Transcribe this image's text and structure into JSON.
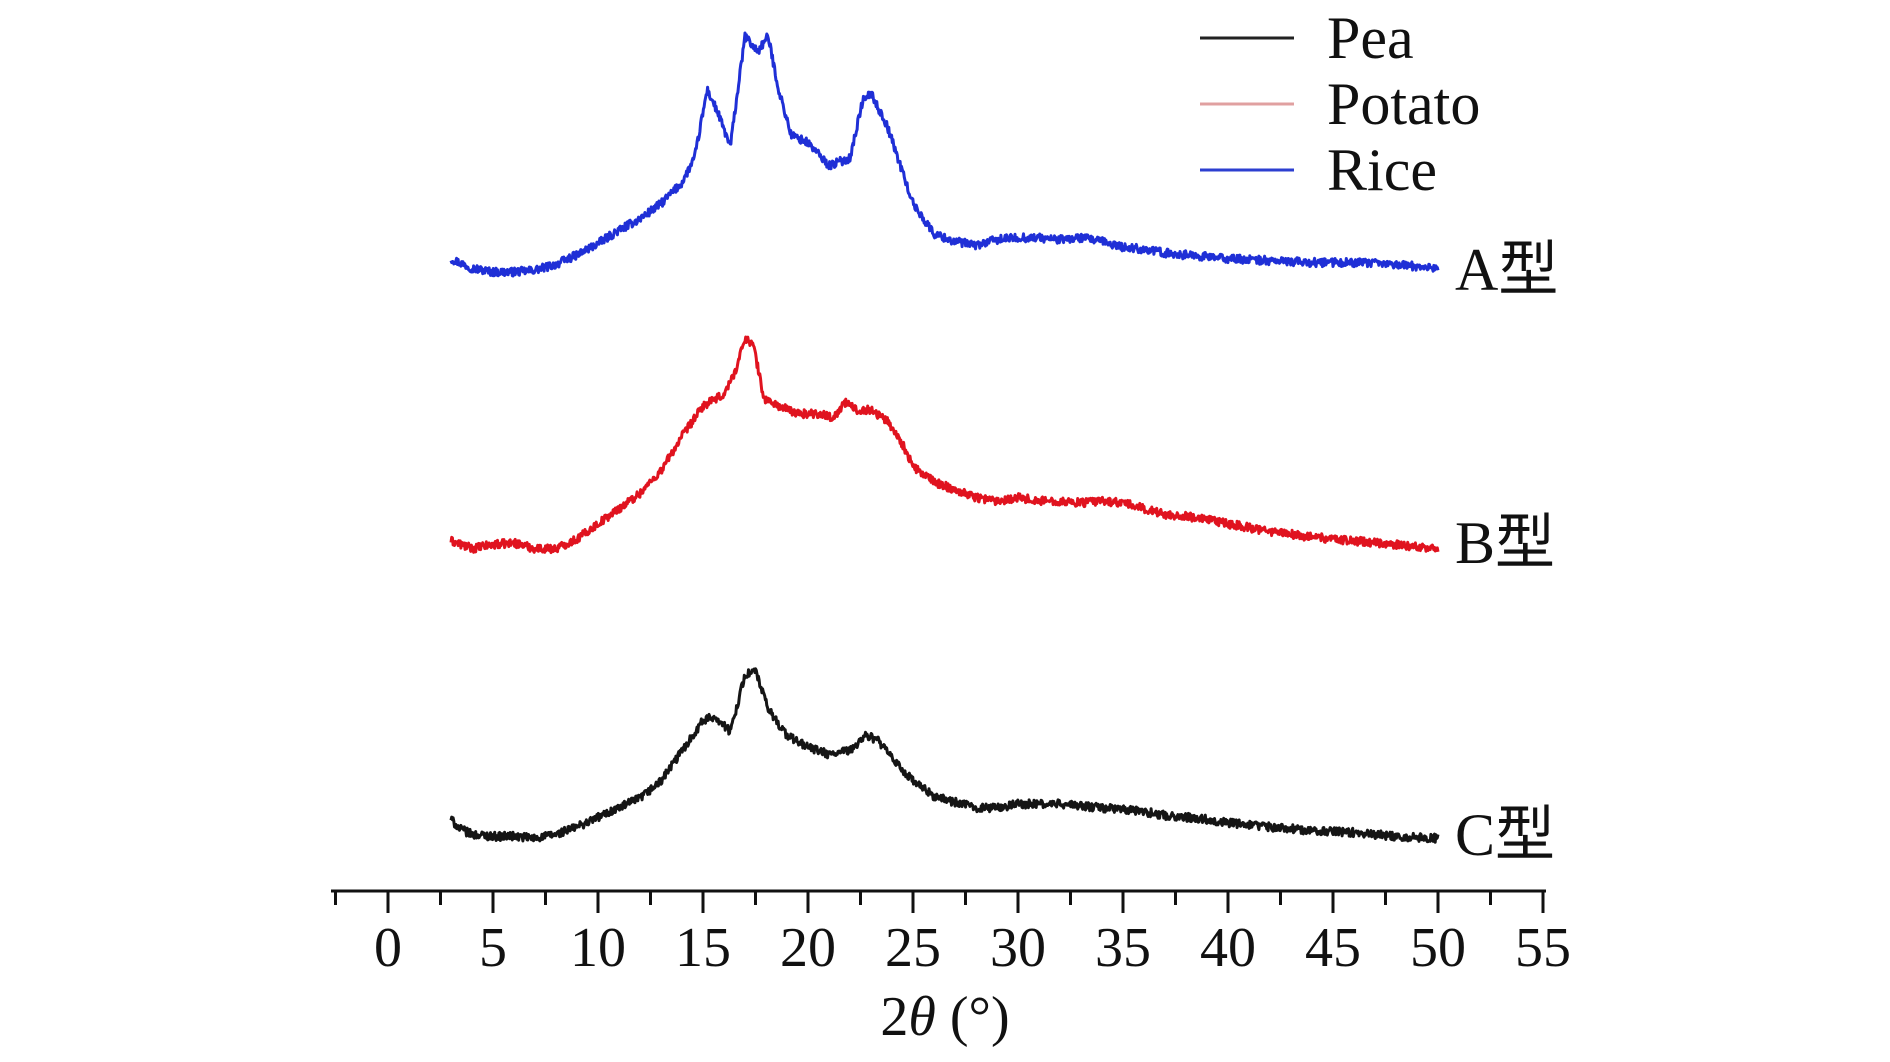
{
  "chart_data": {
    "type": "line",
    "xlabel_prefix": "2",
    "xlabel_symbol": "θ",
    "xlabel_unit": " (°)",
    "xlim": [
      -2.5,
      55
    ],
    "xticks": [
      0,
      5,
      10,
      15,
      20,
      25,
      30,
      35,
      40,
      45,
      50,
      55
    ],
    "legend": {
      "position": "top-right",
      "entries": [
        {
          "name": "Pea",
          "color": "#222222"
        },
        {
          "name": "Potato",
          "color": "#e0a0a0"
        },
        {
          "name": "Rice",
          "color": "#2c3fd0"
        }
      ]
    },
    "series": [
      {
        "name": "Rice",
        "type_label": "A型",
        "color": "#1f2fd6",
        "points": [
          [
            3,
            0.035
          ],
          [
            4,
            0.01
          ],
          [
            5,
            0
          ],
          [
            6,
            0
          ],
          [
            7,
            0.005
          ],
          [
            8,
            0.02
          ],
          [
            9,
            0.045
          ],
          [
            10,
            0.075
          ],
          [
            11,
            0.11
          ],
          [
            12,
            0.14
          ],
          [
            13,
            0.18
          ],
          [
            14,
            0.235
          ],
          [
            14.6,
            0.3
          ],
          [
            15.2,
            0.48
          ],
          [
            15.7,
            0.42
          ],
          [
            16.3,
            0.33
          ],
          [
            17,
            0.62
          ],
          [
            17.6,
            0.58
          ],
          [
            18.1,
            0.62
          ],
          [
            18.6,
            0.48
          ],
          [
            19.2,
            0.36
          ],
          [
            20,
            0.34
          ],
          [
            21,
            0.28
          ],
          [
            22,
            0.3
          ],
          [
            22.6,
            0.45
          ],
          [
            23,
            0.47
          ],
          [
            23.8,
            0.38
          ],
          [
            25,
            0.18
          ],
          [
            26,
            0.1
          ],
          [
            27,
            0.08
          ],
          [
            28,
            0.07
          ],
          [
            29,
            0.085
          ],
          [
            30,
            0.09
          ],
          [
            31,
            0.09
          ],
          [
            32,
            0.085
          ],
          [
            33,
            0.09
          ],
          [
            34,
            0.08
          ],
          [
            35,
            0.065
          ],
          [
            36,
            0.06
          ],
          [
            37,
            0.05
          ],
          [
            38,
            0.045
          ],
          [
            39,
            0.04
          ],
          [
            40,
            0.035
          ],
          [
            42,
            0.03
          ],
          [
            44,
            0.025
          ],
          [
            46,
            0.025
          ],
          [
            48,
            0.02
          ],
          [
            50,
            0.01
          ]
        ]
      },
      {
        "name": "Potato",
        "type_label": "B型",
        "color": "#e0131f",
        "points": [
          [
            3,
            0.045
          ],
          [
            4,
            0.025
          ],
          [
            5,
            0.035
          ],
          [
            6,
            0.04
          ],
          [
            7,
            0.025
          ],
          [
            8,
            0.025
          ],
          [
            9,
            0.05
          ],
          [
            10,
            0.09
          ],
          [
            11,
            0.13
          ],
          [
            12,
            0.17
          ],
          [
            13,
            0.23
          ],
          [
            14,
            0.32
          ],
          [
            15,
            0.4
          ],
          [
            16,
            0.43
          ],
          [
            16.6,
            0.5
          ],
          [
            17,
            0.58
          ],
          [
            17.4,
            0.56
          ],
          [
            17.9,
            0.42
          ],
          [
            18.6,
            0.4
          ],
          [
            19.5,
            0.38
          ],
          [
            20.5,
            0.38
          ],
          [
            21.2,
            0.37
          ],
          [
            21.8,
            0.41
          ],
          [
            22.3,
            0.39
          ],
          [
            23,
            0.39
          ],
          [
            23.8,
            0.36
          ],
          [
            24.5,
            0.3
          ],
          [
            25,
            0.24
          ],
          [
            26,
            0.2
          ],
          [
            27,
            0.18
          ],
          [
            28,
            0.16
          ],
          [
            29,
            0.15
          ],
          [
            30,
            0.16
          ],
          [
            31,
            0.15
          ],
          [
            32,
            0.15
          ],
          [
            33,
            0.145
          ],
          [
            34,
            0.15
          ],
          [
            35,
            0.145
          ],
          [
            36,
            0.13
          ],
          [
            37,
            0.115
          ],
          [
            38,
            0.11
          ],
          [
            39,
            0.1
          ],
          [
            40,
            0.09
          ],
          [
            42,
            0.07
          ],
          [
            44,
            0.055
          ],
          [
            46,
            0.045
          ],
          [
            48,
            0.035
          ],
          [
            50,
            0.025
          ]
        ]
      },
      {
        "name": "Pea",
        "type_label": "C型",
        "color": "#151515",
        "points": [
          [
            3,
            0.06
          ],
          [
            3.4,
            0.035
          ],
          [
            4,
            0.02
          ],
          [
            5,
            0.015
          ],
          [
            6,
            0.015
          ],
          [
            7,
            0.01
          ],
          [
            8,
            0.02
          ],
          [
            9,
            0.04
          ],
          [
            10,
            0.065
          ],
          [
            11,
            0.09
          ],
          [
            12,
            0.115
          ],
          [
            13,
            0.16
          ],
          [
            14,
            0.24
          ],
          [
            15,
            0.32
          ],
          [
            15.6,
            0.33
          ],
          [
            16.3,
            0.29
          ],
          [
            17,
            0.44
          ],
          [
            17.5,
            0.45
          ],
          [
            18.1,
            0.35
          ],
          [
            19,
            0.28
          ],
          [
            20,
            0.25
          ],
          [
            21,
            0.23
          ],
          [
            22,
            0.24
          ],
          [
            22.7,
            0.28
          ],
          [
            23.3,
            0.27
          ],
          [
            24,
            0.22
          ],
          [
            25,
            0.16
          ],
          [
            26,
            0.12
          ],
          [
            27,
            0.105
          ],
          [
            28,
            0.09
          ],
          [
            29,
            0.09
          ],
          [
            30,
            0.1
          ],
          [
            31,
            0.1
          ],
          [
            32,
            0.1
          ],
          [
            33,
            0.095
          ],
          [
            34,
            0.09
          ],
          [
            35,
            0.085
          ],
          [
            36,
            0.08
          ],
          [
            37,
            0.07
          ],
          [
            38,
            0.065
          ],
          [
            39,
            0.06
          ],
          [
            40,
            0.05
          ],
          [
            42,
            0.04
          ],
          [
            44,
            0.03
          ],
          [
            46,
            0.025
          ],
          [
            48,
            0.015
          ],
          [
            50,
            0.01
          ]
        ]
      }
    ]
  }
}
